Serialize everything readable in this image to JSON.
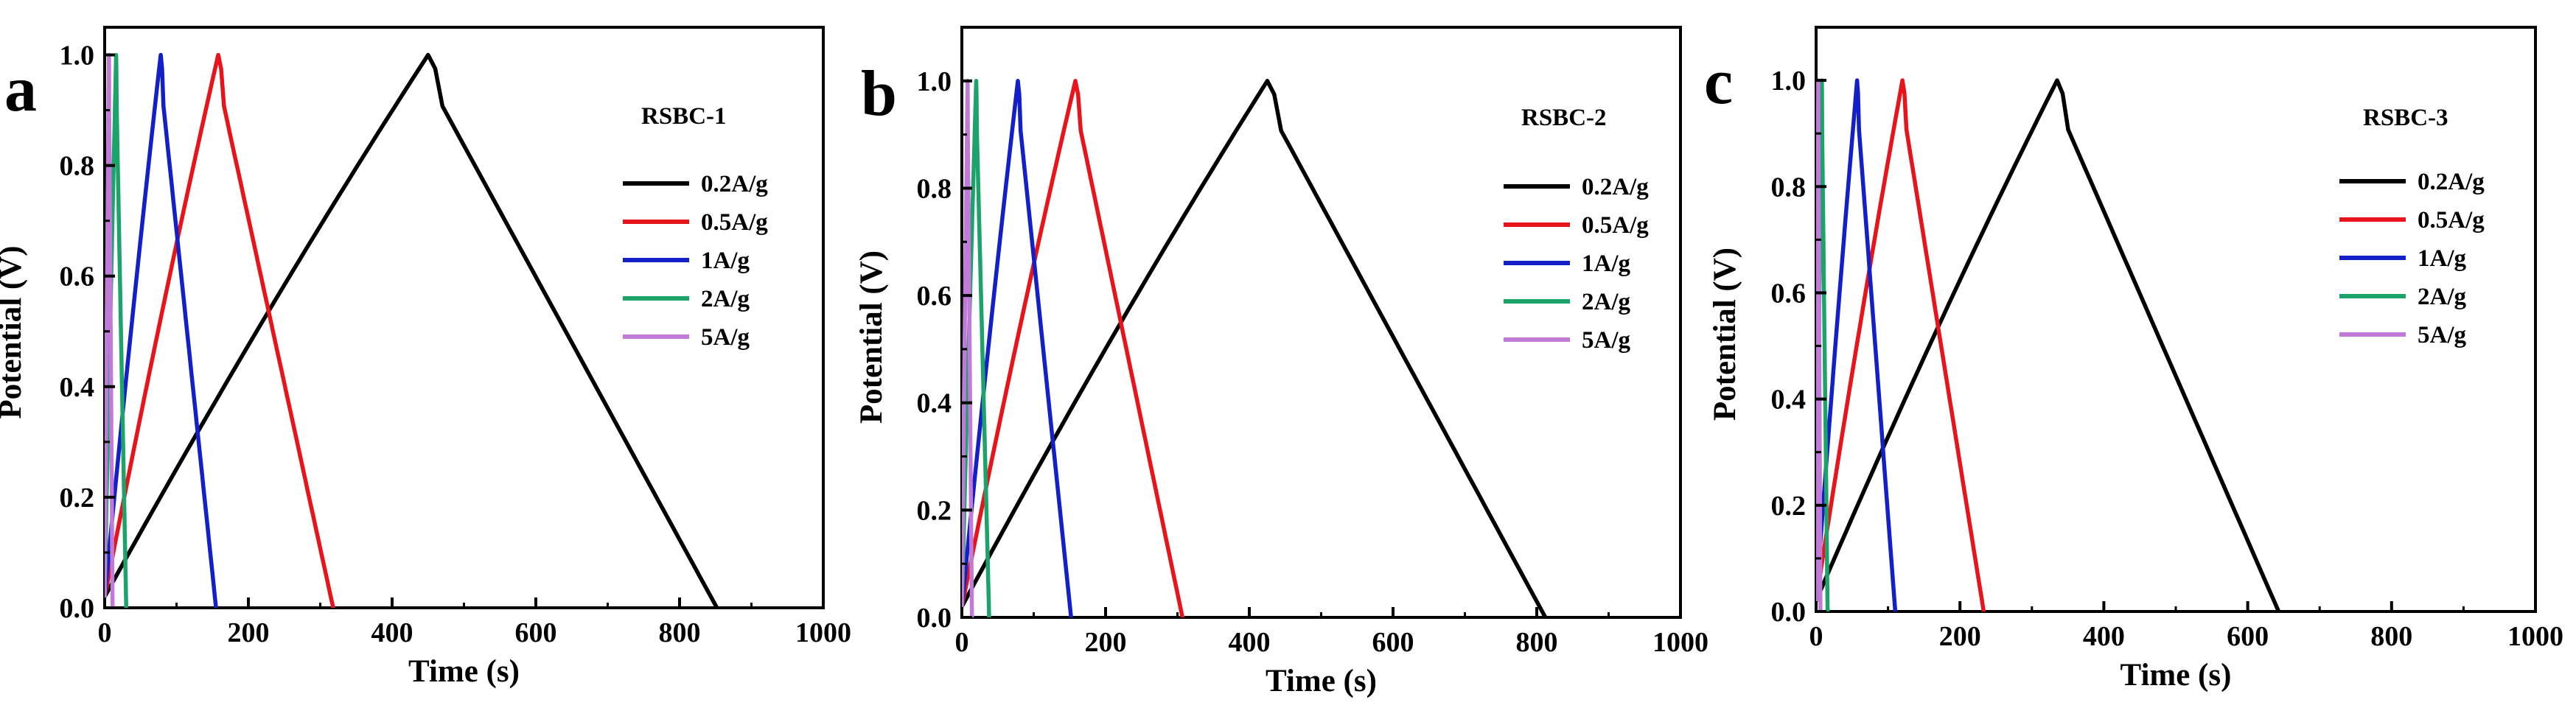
{
  "figure": {
    "charts": [
      {
        "panel": "a",
        "title": "RSBC-1"
      },
      {
        "panel": "b",
        "title": "RSBC-2"
      },
      {
        "panel": "c",
        "title": "RSBC-3"
      }
    ]
  },
  "chart_data": [
    {
      "type": "line",
      "panel_label": "a",
      "title": "RSBC-1",
      "xlabel": "Time (s)",
      "ylabel": "Potential (V)",
      "xlim": [
        0,
        1000
      ],
      "ylim": [
        0,
        1.05
      ],
      "x_ticks": [
        0,
        200,
        400,
        600,
        800,
        1000
      ],
      "y_ticks": [
        0.0,
        0.2,
        0.4,
        0.6,
        0.8,
        1.0
      ],
      "x_tick_labels": [
        "0",
        "200",
        "400",
        "600",
        "800",
        "1000"
      ],
      "y_tick_labels": [
        "0.0",
        "0.2",
        "0.4",
        "0.6",
        "0.8",
        "1.0"
      ],
      "legend_position": "top-right",
      "series": [
        {
          "name": "0.2A/g",
          "color": "#000000",
          "peak_time": 450,
          "end_time": 852
        },
        {
          "name": "0.5A/g",
          "color": "#e8141b",
          "peak_time": 158,
          "end_time": 318
        },
        {
          "name": "1A/g",
          "color": "#1320c8",
          "peak_time": 78,
          "end_time": 155
        },
        {
          "name": "2A/g",
          "color": "#1ca36a",
          "peak_time": 16,
          "end_time": 30
        },
        {
          "name": "5A/g",
          "color": "#c27ad8",
          "peak_time": 6,
          "end_time": 11
        }
      ]
    },
    {
      "type": "line",
      "panel_label": "b",
      "title": "RSBC-2",
      "xlabel": "Time (s)",
      "ylabel": "Potential (V)",
      "xlim": [
        0,
        1000
      ],
      "ylim": [
        0,
        1.1
      ],
      "x_ticks": [
        0,
        200,
        400,
        600,
        800,
        1000
      ],
      "y_ticks": [
        0.0,
        0.2,
        0.4,
        0.6,
        0.8,
        1.0
      ],
      "x_tick_labels": [
        "0",
        "200",
        "400",
        "600",
        "800",
        "1000"
      ],
      "y_tick_labels": [
        "0.0",
        "0.2",
        "0.4",
        "0.6",
        "0.8",
        "1.0"
      ],
      "legend_position": "top-right",
      "series": [
        {
          "name": "0.2A/g",
          "color": "#000000",
          "peak_time": 425,
          "end_time": 812
        },
        {
          "name": "0.5A/g",
          "color": "#e8141b",
          "peak_time": 158,
          "end_time": 307
        },
        {
          "name": "1A/g",
          "color": "#1320c8",
          "peak_time": 78,
          "end_time": 152
        },
        {
          "name": "2A/g",
          "color": "#1ca36a",
          "peak_time": 20,
          "end_time": 38
        },
        {
          "name": "5A/g",
          "color": "#c27ad8",
          "peak_time": 8,
          "end_time": 14
        }
      ]
    },
    {
      "type": "line",
      "panel_label": "c",
      "title": "RSBC-3",
      "xlabel": "Time (s)",
      "ylabel": "Potential (V)",
      "xlim": [
        0,
        1000
      ],
      "ylim": [
        0,
        1.1
      ],
      "x_ticks": [
        0,
        200,
        400,
        600,
        800,
        1000
      ],
      "y_ticks": [
        0.0,
        0.2,
        0.4,
        0.6,
        0.8,
        1.0
      ],
      "x_tick_labels": [
        "0",
        "200",
        "400",
        "600",
        "800",
        "1000"
      ],
      "y_tick_labels": [
        "0.0",
        "0.2",
        "0.4",
        "0.6",
        "0.8",
        "1.0"
      ],
      "legend_position": "top-right",
      "series": [
        {
          "name": "0.2A/g",
          "color": "#000000",
          "peak_time": 335,
          "end_time": 643
        },
        {
          "name": "0.5A/g",
          "color": "#e8141b",
          "peak_time": 120,
          "end_time": 233
        },
        {
          "name": "1A/g",
          "color": "#1320c8",
          "peak_time": 57,
          "end_time": 110
        },
        {
          "name": "2A/g",
          "color": "#1ca36a",
          "peak_time": 8,
          "end_time": 16
        },
        {
          "name": "5A/g",
          "color": "#c27ad8",
          "peak_time": 3,
          "end_time": 6
        }
      ]
    }
  ]
}
